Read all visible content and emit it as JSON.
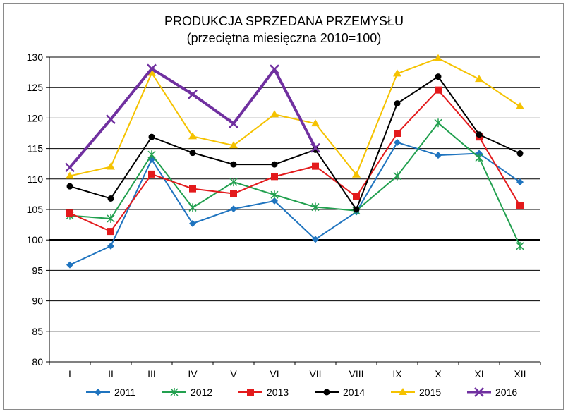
{
  "chart_data": {
    "type": "line",
    "title": "PRODUKCJA SPRZEDANA PRZEMYSŁU",
    "subtitle": "(przeciętna miesięczna 2010=100)",
    "xlabel": "",
    "ylabel": "",
    "ylim": [
      80,
      130
    ],
    "yticks": [
      80,
      85,
      90,
      95,
      100,
      105,
      110,
      115,
      120,
      125,
      130
    ],
    "reference_line": 100,
    "grid": true,
    "legend_position": "bottom",
    "categories": [
      "I",
      "II",
      "III",
      "IV",
      "V",
      "VI",
      "VII",
      "VIII",
      "IX",
      "X",
      "XI",
      "XII"
    ],
    "series": [
      {
        "name": "2011",
        "color": "#1f74bf",
        "marker": "diamond",
        "values": [
          95.9,
          99.0,
          113.2,
          102.7,
          105.1,
          106.4,
          100.1,
          104.6,
          116.0,
          113.9,
          114.2,
          109.5
        ]
      },
      {
        "name": "2012",
        "color": "#22a04f",
        "marker": "asterisk",
        "values": [
          104.0,
          103.5,
          114.0,
          105.3,
          109.5,
          107.4,
          105.4,
          104.8,
          110.5,
          119.2,
          113.5,
          99.0
        ]
      },
      {
        "name": "2013",
        "color": "#e31a1c",
        "marker": "square",
        "values": [
          104.4,
          101.4,
          110.8,
          108.4,
          107.6,
          110.4,
          112.1,
          107.1,
          117.5,
          124.6,
          116.9,
          105.6
        ]
      },
      {
        "name": "2014",
        "color": "#000000",
        "marker": "circle",
        "values": [
          108.8,
          106.8,
          116.9,
          114.3,
          112.4,
          112.4,
          114.8,
          105.0,
          122.4,
          126.8,
          117.3,
          114.2
        ]
      },
      {
        "name": "2015",
        "color": "#f5c200",
        "marker": "triangle",
        "values": [
          110.5,
          112.0,
          127.4,
          117.0,
          115.5,
          120.6,
          119.1,
          110.7,
          127.3,
          129.8,
          126.4,
          121.9
        ]
      },
      {
        "name": "2016",
        "color": "#7030a0",
        "marker": "x",
        "values": [
          111.9,
          119.8,
          128.1,
          123.9,
          119.1,
          128.0,
          115.1,
          null,
          null,
          null,
          null,
          null
        ]
      }
    ]
  }
}
